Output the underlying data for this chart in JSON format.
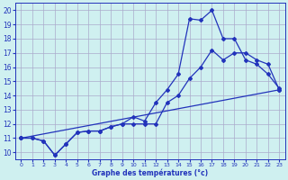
{
  "bg_color": "#cff0f0",
  "grid_color": "#aaaacc",
  "line_color": "#2233bb",
  "xlabel": "Graphe des températures (°c)",
  "xlim": [
    -0.5,
    23.5
  ],
  "ylim": [
    9.5,
    20.5
  ],
  "yticks": [
    10,
    11,
    12,
    13,
    14,
    15,
    16,
    17,
    18,
    19,
    20
  ],
  "xticks": [
    0,
    1,
    2,
    3,
    4,
    5,
    6,
    7,
    8,
    9,
    10,
    11,
    12,
    13,
    14,
    15,
    16,
    17,
    18,
    19,
    20,
    21,
    22,
    23
  ],
  "line1_x": [
    0,
    1,
    2,
    3,
    4,
    5,
    6,
    7,
    8,
    9,
    10,
    11,
    12,
    13,
    14,
    15,
    16,
    17,
    18,
    19,
    20,
    21,
    22,
    23
  ],
  "line1_y": [
    11.0,
    11.0,
    10.8,
    9.8,
    10.6,
    11.4,
    11.5,
    11.5,
    11.8,
    12.0,
    12.5,
    12.2,
    13.5,
    14.4,
    15.5,
    19.4,
    19.3,
    20.0,
    18.0,
    18.0,
    16.5,
    16.2,
    15.5,
    14.5
  ],
  "line2_x": [
    0,
    1,
    2,
    3,
    4,
    5,
    6,
    7,
    8,
    9,
    10,
    11,
    12,
    13,
    14,
    15,
    16,
    17,
    18,
    19,
    20,
    21,
    22,
    23
  ],
  "line2_y": [
    11.0,
    11.0,
    10.8,
    9.8,
    10.6,
    11.4,
    11.5,
    11.5,
    11.8,
    12.0,
    12.0,
    12.0,
    12.0,
    13.5,
    14.0,
    15.2,
    16.0,
    17.2,
    16.5,
    17.0,
    17.0,
    16.5,
    16.2,
    14.4
  ],
  "line3_x": [
    0,
    23
  ],
  "line3_y": [
    11.0,
    14.4
  ]
}
